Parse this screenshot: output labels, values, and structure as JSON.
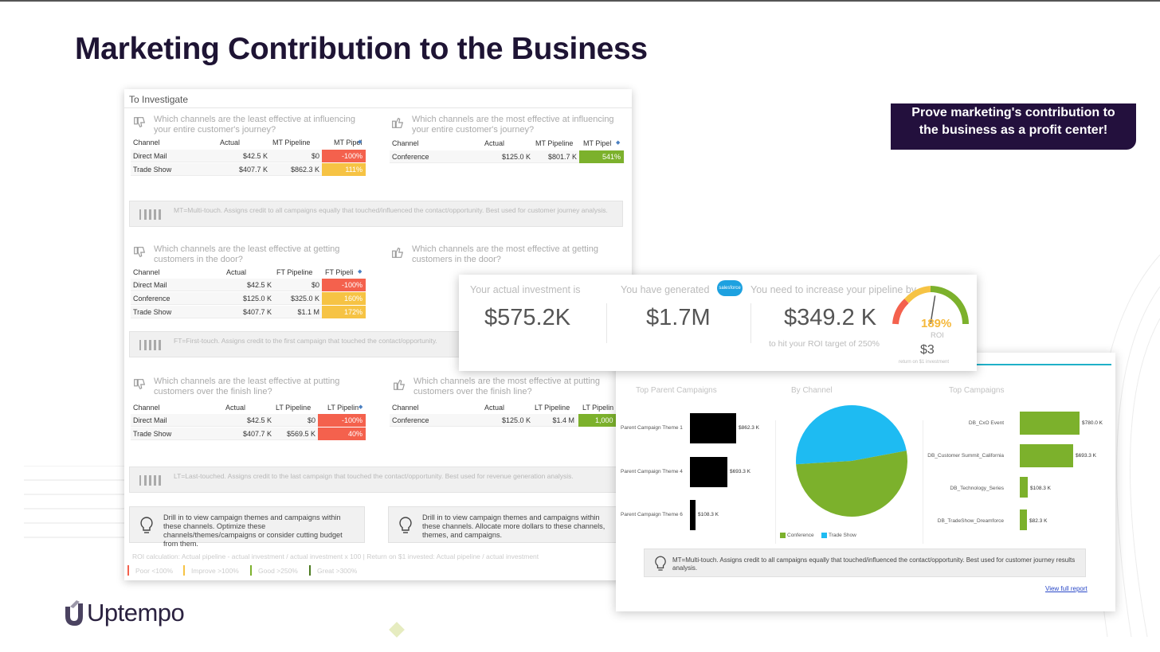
{
  "slide": {
    "title": "Marketing Contribution to the Business",
    "callout": "Prove marketing's contribution to the business as a profit center!",
    "logo_text": "Uptempo",
    "colors": {
      "title": "#1e1434",
      "callout_bg": "#23103d",
      "poor": "#f4614d",
      "improve": "#f6c344",
      "good": "#7cb12c",
      "great": "#4b7a1f"
    }
  },
  "left_panel": {
    "header": "To Investigate",
    "sections": [
      {
        "least": {
          "question": "Which channels are the least effective at influencing your entire customer's journey?",
          "columns": [
            "Channel",
            "Actual",
            "MT Pipeline",
            "MT Pipel"
          ],
          "rows": [
            {
              "channel": "Direct Mail",
              "actual": "$42.5 K",
              "pipeline": "$0",
              "roi": "-100%"
            },
            {
              "channel": "Trade Show",
              "actual": "$407.7 K",
              "pipeline": "$862.3 K",
              "roi": "111%"
            }
          ]
        },
        "most": {
          "question": "Which channels are the most effective at influencing your entire customer's journey?",
          "columns": [
            "Channel",
            "Actual",
            "MT Pipeline",
            "MT Pipel"
          ],
          "rows": [
            {
              "channel": "Conference",
              "actual": "$125.0 K",
              "pipeline": "$801.7 K",
              "roi": "541%"
            }
          ]
        },
        "note": "MT=Multi-touch. Assigns credit to all campaigns equally that touched/influenced the contact/opportunity. Best used for customer journey analysis."
      },
      {
        "least": {
          "question": "Which channels are the least effective at getting customers in the door?",
          "columns": [
            "Channel",
            "Actual",
            "FT Pipeline",
            "FT Pipeli"
          ],
          "rows": [
            {
              "channel": "Direct Mail",
              "actual": "$42.5 K",
              "pipeline": "$0",
              "roi": "-100%"
            },
            {
              "channel": "Conference",
              "actual": "$125.0 K",
              "pipeline": "$325.0 K",
              "roi": "160%"
            },
            {
              "channel": "Trade Show",
              "actual": "$407.7 K",
              "pipeline": "$1.1 M",
              "roi": "172%"
            }
          ]
        },
        "most": {
          "question": "Which channels are the most effective at getting customers in the door?"
        },
        "note": "FT=First-touch. Assigns credit to the first campaign that touched the contact/opportunity."
      },
      {
        "least": {
          "question": "Which channels are the least effective at putting customers over the finish line?",
          "columns": [
            "Channel",
            "Actual",
            "LT Pipeline",
            "LT Pipelin"
          ],
          "rows": [
            {
              "channel": "Direct Mail",
              "actual": "$42.5 K",
              "pipeline": "$0",
              "roi": "-100%"
            },
            {
              "channel": "Trade Show",
              "actual": "$407.7 K",
              "pipeline": "$569.5 K",
              "roi": "40%"
            }
          ]
        },
        "most": {
          "question": "Which channels are the most effective at putting customers over the finish line?",
          "columns": [
            "Channel",
            "Actual",
            "LT Pipeline",
            "LT Pipelin"
          ],
          "rows": [
            {
              "channel": "Conference",
              "actual": "$125.0 K",
              "pipeline": "$1.4 M",
              "roi": "1,000"
            }
          ]
        },
        "note": "LT=Last-touched. Assigns credit to the last campaign that touched the contact/opportunity. Best used for revenue generation analysis."
      }
    ],
    "drill_left": "Drill in to view campaign themes and campaigns within these channels. Optimize these channels/themes/campaigns or consider cutting budget from them.",
    "drill_right": "Drill in to view campaign themes and campaigns within these channels. Allocate more dollars to these channels, themes, and campaigns.",
    "roi_calc": "ROI calculation: Actual pipeline - actual investment / actual investment x 100 | Return on $1 invested: Actual pipeline / actual investment",
    "legend": [
      "Poor <100%",
      "Improve >100%",
      "Good >250%",
      "Great >300%"
    ]
  },
  "kpi": {
    "investment_label": "Your actual investment is",
    "investment_value": "$575.2K",
    "generated_label": "You have generated",
    "salesforce_badge": "salesforce",
    "generated_value": "$1.7M",
    "increase_label": "You need to increase your pipeline by",
    "increase_value": "$349.2 K",
    "increase_sub": "to hit your ROI target of 250%",
    "roi_percent": "189%",
    "roi_label": "ROI",
    "roi_return": "$3",
    "roi_return_sub": "return on $1 investment",
    "gauge_fraction": 0.55
  },
  "right_panel": {
    "top_parent_title": "Top Parent Campaigns",
    "by_channel_title": "By Channel",
    "top_campaigns_title": "Top Campaigns",
    "parent_campaigns": [
      {
        "name": "Parent Campaign Theme 1",
        "value": 862.3,
        "label": "$862.3 K"
      },
      {
        "name": "Parent Campaign Theme 4",
        "value": 693.3,
        "label": "$693.3 K"
      },
      {
        "name": "Parent Campaign Theme 6",
        "value": 108.3,
        "label": "$108.3 K"
      }
    ],
    "by_channel": [
      {
        "name": "Conference",
        "share": 0.52,
        "color": "#7cb12c"
      },
      {
        "name": "Trade Show",
        "share": 0.48,
        "color": "#1ebbf2"
      }
    ],
    "top_campaigns": [
      {
        "name": "DB_CxO Event",
        "value": 780.0,
        "label": "$780.0 K"
      },
      {
        "name": "DB_Customer Summit_California",
        "value": 693.3,
        "label": "$693.3 K"
      },
      {
        "name": "DB_Technology_Series",
        "value": 108.3,
        "label": "$108.3 K"
      },
      {
        "name": "DB_TradeShow_Dreamforce",
        "value": 82.3,
        "label": "$82.3 K"
      }
    ],
    "note": "MT=Multi-touch. Assigns credit to all campaigns equally that touched/influenced the contact/opportunity. Best used for customer journey results analysis.",
    "view_full_report": "View full report"
  }
}
